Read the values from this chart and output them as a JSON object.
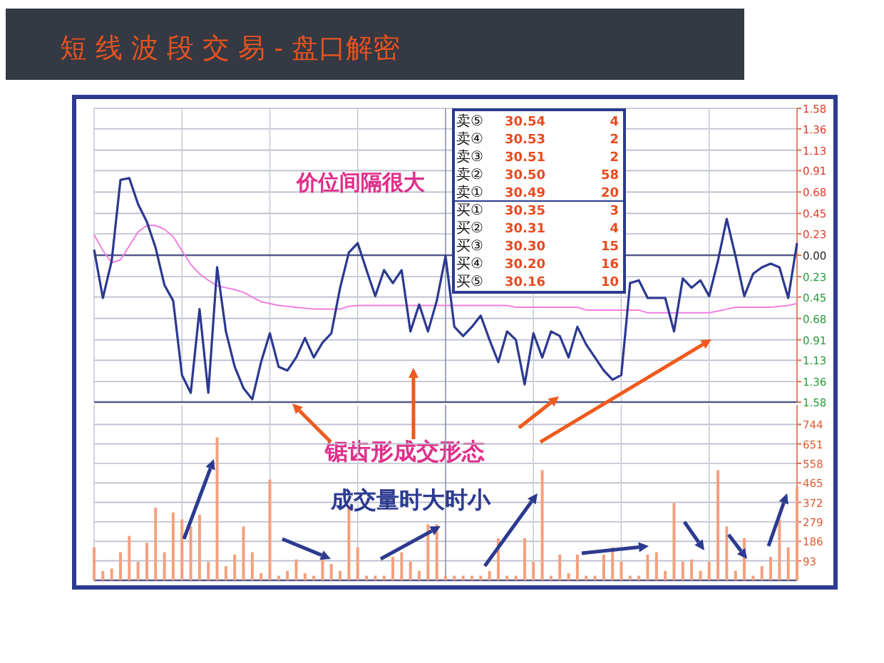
{
  "chart_data": [
    {
      "type": "line",
      "title": "短 线 波 段 交 易 - 盘口解密",
      "categories": [
        null,
        null,
        null,
        null,
        null,
        null,
        null,
        null,
        null,
        null,
        null,
        null,
        null,
        null,
        null,
        null,
        null,
        null,
        null,
        null,
        null,
        null,
        null,
        null,
        null,
        null,
        null,
        null,
        null,
        null,
        null,
        null,
        null,
        null,
        null,
        null,
        null,
        null,
        null,
        null,
        null,
        null,
        null,
        null,
        null,
        null,
        null,
        null,
        null,
        null,
        null,
        null,
        null,
        null,
        null,
        null,
        null,
        null,
        null,
        null,
        null,
        null,
        null,
        null,
        null,
        null,
        null,
        null,
        null,
        null,
        null,
        null,
        null,
        null,
        null,
        null,
        null,
        null,
        null,
        null,
        null
      ],
      "series": [
        {
          "color": "#2b3990",
          "values": [
            0.06,
            -0.46,
            -0.06,
            0.81,
            0.83,
            0.55,
            0.36,
            0.08,
            -0.32,
            -0.49,
            -1.29,
            -1.48,
            -0.58,
            -1.48,
            -0.13,
            -0.82,
            -1.2,
            -1.43,
            -1.55,
            -1.15,
            -0.84,
            -1.2,
            -1.24,
            -1.1,
            -0.89,
            -1.1,
            -0.94,
            -0.84,
            -0.35,
            0.03,
            0.13,
            -0.16,
            -0.44,
            -0.16,
            -0.3,
            -0.16,
            -0.82,
            -0.53,
            -0.82,
            -0.49,
            -0.01,
            -0.77,
            -0.87,
            -0.77,
            -0.65,
            -0.91,
            -1.15,
            -0.82,
            -0.91,
            -1.39,
            -0.84,
            -1.1,
            -0.82,
            -0.87,
            -1.1,
            -0.77,
            -0.96,
            -1.1,
            -1.24,
            -1.34,
            -1.29,
            -0.3,
            -0.27,
            -0.46,
            -0.46,
            -0.46,
            -0.82,
            -0.25,
            -0.35,
            -0.27,
            -0.44,
            -0.06,
            0.39,
            -0.01,
            -0.44,
            -0.2,
            -0.13,
            -0.09,
            -0.13,
            -0.46,
            0.13
          ]
        },
        {
          "color": "#f080e0",
          "values": [
            0.22,
            0.05,
            -0.08,
            -0.05,
            0.1,
            0.25,
            0.32,
            0.32,
            0.28,
            0.2,
            0.05,
            -0.1,
            -0.2,
            -0.27,
            -0.33,
            -0.35,
            -0.37,
            -0.4,
            -0.45,
            -0.5,
            -0.52,
            -0.54,
            -0.55,
            -0.56,
            -0.57,
            -0.58,
            -0.58,
            -0.58,
            -0.58,
            -0.55,
            -0.54,
            -0.54,
            -0.54,
            -0.54,
            -0.54,
            -0.54,
            -0.54,
            -0.54,
            -0.54,
            -0.54,
            -0.54,
            -0.54,
            -0.54,
            -0.54,
            -0.54,
            -0.54,
            -0.54,
            -0.54,
            -0.56,
            -0.56,
            -0.56,
            -0.56,
            -0.56,
            -0.56,
            -0.56,
            -0.56,
            -0.59,
            -0.59,
            -0.59,
            -0.59,
            -0.59,
            -0.59,
            -0.59,
            -0.62,
            -0.62,
            -0.62,
            -0.62,
            -0.62,
            -0.62,
            -0.62,
            -0.62,
            -0.6,
            -0.58,
            -0.56,
            -0.56,
            -0.56,
            -0.56,
            -0.56,
            -0.55,
            -0.54,
            -0.52
          ]
        }
      ],
      "ylim": [
        -1.58,
        1.58
      ],
      "yticks": [
        1.58,
        1.36,
        1.13,
        0.91,
        0.68,
        0.45,
        0.23,
        {
          "value": 0,
          "label": "0.00"
        },
        {
          "value": -0.23,
          "label": "0.23"
        },
        {
          "value": -0.45,
          "label": "0.45"
        },
        {
          "value": -0.68,
          "label": "0.68"
        },
        {
          "value": -0.91,
          "label": "0.91"
        },
        {
          "value": -1.13,
          "label": "1.13"
        },
        {
          "value": -1.36,
          "label": "1.36"
        },
        {
          "value": -1.58,
          "label": "1.58"
        }
      ],
      "grid": true,
      "ref_lines": [
        {
          "axis": "y",
          "value": 0,
          "color": "#555a88"
        }
      ],
      "annotations": [
        "价位间隔很大",
        "锯齿形成交形态",
        "卖⑤",
        "30.54",
        "4",
        "卖④",
        "30.53",
        "2",
        "卖③",
        "30.51",
        "2",
        "卖②",
        "30.50",
        "58",
        "卖①",
        "30.49",
        "20",
        "买①",
        "30.35",
        "3",
        "买②",
        "30.31",
        "4",
        "买③",
        "30.30",
        "15",
        "买④",
        "30.20",
        "16",
        "买⑤",
        "30.16",
        "10"
      ]
    },
    {
      "type": "bar",
      "categories": [
        null,
        null,
        null,
        null,
        null,
        null,
        null,
        null,
        null,
        null,
        null,
        null,
        null,
        null,
        null,
        null,
        null,
        null,
        null,
        null,
        null,
        null,
        null,
        null,
        null,
        null,
        null,
        null,
        null,
        null,
        null,
        null,
        null,
        null,
        null,
        null,
        null,
        null,
        null,
        null,
        null,
        null,
        null,
        null,
        null,
        null,
        null,
        null,
        null,
        null,
        null,
        null,
        null,
        null,
        null,
        null,
        null,
        null,
        null,
        null,
        null,
        null,
        null,
        null,
        null,
        null,
        null,
        null,
        null,
        null,
        null,
        null,
        null,
        null,
        null,
        null,
        null,
        null,
        null,
        null,
        null
      ],
      "series": [
        {
          "color": "#f4a07e",
          "values": [
            157,
            45,
            56,
            134,
            212,
            89,
            179,
            347,
            134,
            324,
            291,
            257,
            313,
            89,
            682,
            67,
            123,
            257,
            134,
            34,
            481,
            22,
            45,
            100,
            34,
            22,
            100,
            78,
            45,
            358,
            157,
            22,
            22,
            22,
            112,
            134,
            89,
            45,
            268,
            268,
            22,
            22,
            22,
            22,
            22,
            45,
            201,
            22,
            22,
            201,
            89,
            526,
            22,
            123,
            34,
            123,
            22,
            22,
            123,
            157,
            89,
            22,
            22,
            123,
            134,
            45,
            369,
            89,
            100,
            45,
            89,
            526,
            257,
            45,
            201,
            22,
            67,
            112,
            291,
            157,
            447
          ]
        }
      ],
      "ylim": [
        0,
        837
      ],
      "yticks": [
        744,
        651,
        558,
        465,
        372,
        279,
        186,
        93
      ],
      "grid": true,
      "annotations": [
        "成交量时大时小"
      ]
    }
  ]
}
